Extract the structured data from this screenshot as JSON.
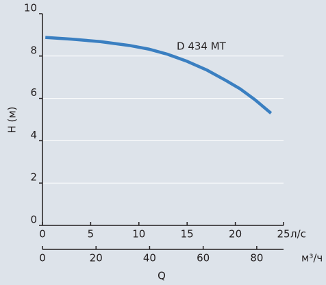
{
  "chart_data": {
    "type": "line",
    "ylabel": "H (м)",
    "xlabel": "Q",
    "x_unit_label": "л/с",
    "x2_unit_label": "м³/ч",
    "x": [
      0.3,
      3,
      6,
      9,
      11,
      13,
      15,
      17,
      19,
      20.5,
      22,
      23.7
    ],
    "series": [
      {
        "name": "D 434 MT",
        "color": "#3a7fc1",
        "values": [
          8.88,
          8.8,
          8.68,
          8.5,
          8.33,
          8.08,
          7.75,
          7.35,
          6.85,
          6.45,
          5.95,
          5.3
        ]
      }
    ],
    "xlim": [
      0,
      25
    ],
    "xticks": [
      0,
      5,
      10,
      15,
      20,
      25
    ],
    "ylim": [
      0,
      10
    ],
    "yticks": [
      0,
      2,
      4,
      6,
      8,
      10
    ],
    "x2lim": [
      0,
      90
    ],
    "x2ticks": [
      0,
      20,
      40,
      60,
      80
    ],
    "grid": true
  }
}
